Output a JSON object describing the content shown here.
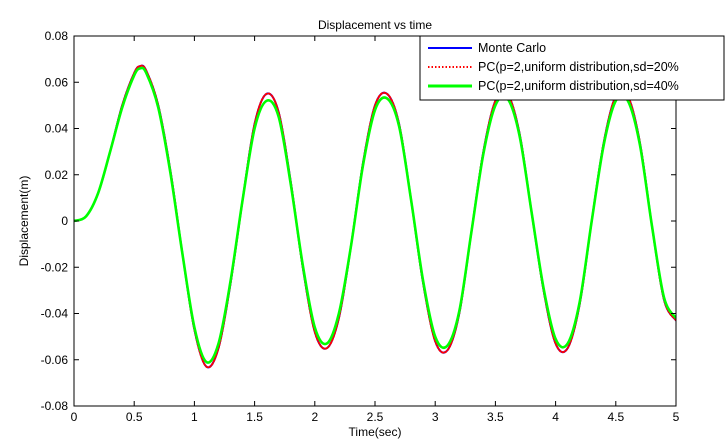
{
  "chart_data": {
    "type": "line",
    "title": "Displacement vs time",
    "xlabel": "Time(sec)",
    "ylabel": "Displacement(m)",
    "xlim": [
      0,
      5
    ],
    "ylim": [
      -0.08,
      0.08
    ],
    "xticks": [
      0,
      0.5,
      1,
      1.5,
      2,
      2.5,
      3,
      3.5,
      4,
      4.5,
      5
    ],
    "xtick_labels": [
      "0",
      "0.5",
      "1",
      "1.5",
      "2",
      "2.5",
      "3",
      "3.5",
      "4",
      "4.5",
      "5"
    ],
    "yticks": [
      -0.08,
      -0.06,
      -0.04,
      -0.02,
      0,
      0.02,
      0.04,
      0.06,
      0.08
    ],
    "ytick_labels": [
      "-0.08",
      "-0.06",
      "-0.04",
      "-0.02",
      "0",
      "0.02",
      "0.04",
      "0.06",
      "0.08"
    ],
    "grid": false,
    "legend_position": "top-right",
    "series": [
      {
        "name": "Monte Carlo",
        "color": "#0000ff",
        "style": "solid",
        "x": [
          0,
          0.1,
          0.2,
          0.3,
          0.4,
          0.5,
          0.55,
          0.6,
          0.7,
          0.8,
          0.9,
          1.0,
          1.1,
          1.2,
          1.3,
          1.4,
          1.5,
          1.6,
          1.7,
          1.8,
          1.9,
          2.0,
          2.1,
          2.2,
          2.3,
          2.4,
          2.5,
          2.6,
          2.7,
          2.8,
          2.9,
          3.0,
          3.1,
          3.2,
          3.3,
          3.4,
          3.5,
          3.6,
          3.7,
          3.8,
          3.9,
          4.0,
          4.1,
          4.2,
          4.3,
          4.4,
          4.5,
          4.6,
          4.7,
          4.8,
          4.9,
          5.0
        ],
        "y": [
          0,
          0.002,
          0.012,
          0.03,
          0.05,
          0.064,
          0.067,
          0.065,
          0.05,
          0.022,
          -0.014,
          -0.047,
          -0.063,
          -0.055,
          -0.027,
          0.009,
          0.042,
          0.055,
          0.047,
          0.017,
          -0.02,
          -0.048,
          -0.055,
          -0.042,
          -0.011,
          0.025,
          0.05,
          0.055,
          0.042,
          0.009,
          -0.027,
          -0.052,
          -0.056,
          -0.04,
          -0.005,
          0.03,
          0.052,
          0.055,
          0.038,
          0.004,
          -0.03,
          -0.053,
          -0.055,
          -0.036,
          0.0,
          0.034,
          0.054,
          0.054,
          0.034,
          -0.002,
          -0.034,
          -0.043
        ]
      },
      {
        "name": "PC(p=2,uniform distribution,sd=20%",
        "color": "#ff0000",
        "style": "dotted",
        "x": [
          0,
          0.1,
          0.2,
          0.3,
          0.4,
          0.5,
          0.55,
          0.6,
          0.7,
          0.8,
          0.9,
          1.0,
          1.1,
          1.2,
          1.3,
          1.4,
          1.5,
          1.6,
          1.7,
          1.8,
          1.9,
          2.0,
          2.1,
          2.2,
          2.3,
          2.4,
          2.5,
          2.6,
          2.7,
          2.8,
          2.9,
          3.0,
          3.1,
          3.2,
          3.3,
          3.4,
          3.5,
          3.6,
          3.7,
          3.8,
          3.9,
          4.0,
          4.1,
          4.2,
          4.3,
          4.4,
          4.5,
          4.6,
          4.7,
          4.8,
          4.9,
          5.0
        ],
        "y": [
          0,
          0.002,
          0.012,
          0.03,
          0.05,
          0.064,
          0.067,
          0.065,
          0.05,
          0.022,
          -0.014,
          -0.047,
          -0.063,
          -0.055,
          -0.027,
          0.009,
          0.042,
          0.055,
          0.047,
          0.017,
          -0.02,
          -0.048,
          -0.055,
          -0.042,
          -0.011,
          0.025,
          0.05,
          0.055,
          0.042,
          0.009,
          -0.027,
          -0.052,
          -0.056,
          -0.04,
          -0.005,
          0.03,
          0.052,
          0.055,
          0.038,
          0.004,
          -0.03,
          -0.053,
          -0.055,
          -0.036,
          0.0,
          0.034,
          0.054,
          0.054,
          0.034,
          -0.002,
          -0.034,
          -0.043
        ]
      },
      {
        "name": "PC(p=2,uniform distribution,sd=40%",
        "color": "#00ff00",
        "style": "solid",
        "x": [
          0,
          0.1,
          0.2,
          0.3,
          0.4,
          0.5,
          0.55,
          0.6,
          0.7,
          0.8,
          0.9,
          1.0,
          1.1,
          1.2,
          1.3,
          1.4,
          1.5,
          1.6,
          1.7,
          1.8,
          1.9,
          2.0,
          2.1,
          2.2,
          2.3,
          2.4,
          2.5,
          2.6,
          2.7,
          2.8,
          2.9,
          3.0,
          3.1,
          3.2,
          3.3,
          3.4,
          3.5,
          3.6,
          3.7,
          3.8,
          3.9,
          4.0,
          4.1,
          4.2,
          4.3,
          4.4,
          4.5,
          4.6,
          4.7,
          4.8,
          4.9,
          5.0
        ],
        "y": [
          0,
          0.002,
          0.012,
          0.03,
          0.049,
          0.063,
          0.066,
          0.064,
          0.049,
          0.021,
          -0.014,
          -0.046,
          -0.061,
          -0.053,
          -0.026,
          0.009,
          0.04,
          0.052,
          0.045,
          0.016,
          -0.019,
          -0.046,
          -0.053,
          -0.04,
          -0.011,
          0.024,
          0.048,
          0.053,
          0.041,
          0.009,
          -0.026,
          -0.05,
          -0.054,
          -0.039,
          -0.005,
          0.029,
          0.05,
          0.053,
          0.037,
          0.004,
          -0.029,
          -0.051,
          -0.053,
          -0.035,
          0.0,
          0.033,
          0.052,
          0.052,
          0.033,
          -0.002,
          -0.033,
          -0.042
        ]
      }
    ]
  }
}
